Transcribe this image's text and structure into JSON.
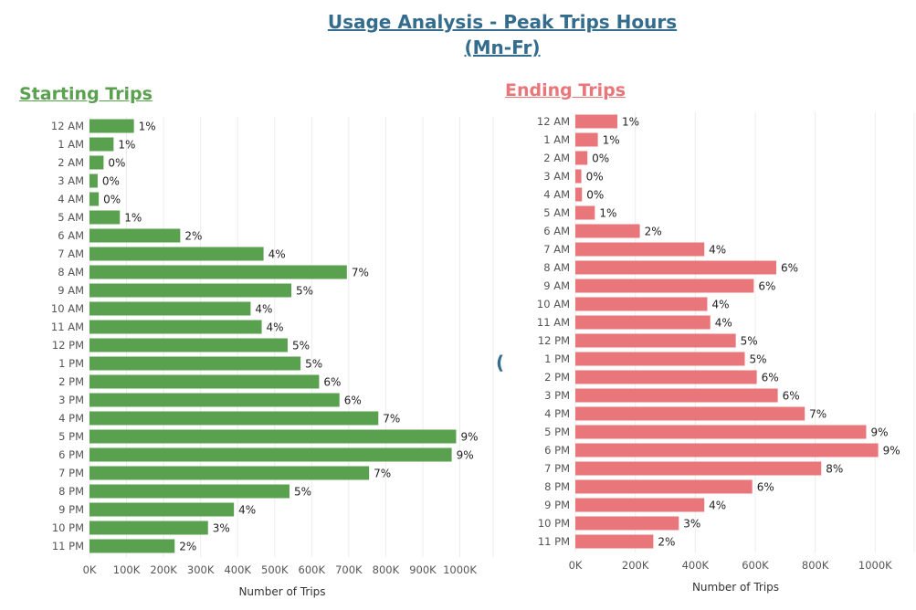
{
  "title_line1": "Usage Analysis - Peak Trips Hours",
  "title_line2": "(Mn-Fr)",
  "stray_mark": "(",
  "chart_data": [
    {
      "type": "bar",
      "orientation": "horizontal",
      "title": "Starting Trips",
      "xlabel": "Number of Trips",
      "color": "#59a14f",
      "xlim": [
        0,
        1090000
      ],
      "x_ticks": [
        0,
        100000,
        200000,
        300000,
        400000,
        500000,
        600000,
        700000,
        800000,
        900000,
        1000000
      ],
      "x_tick_labels": [
        "0K",
        "100K",
        "200K",
        "300K",
        "400K",
        "500K",
        "600K",
        "700K",
        "800K",
        "900K",
        "1000K"
      ],
      "grid": true,
      "categories": [
        "12 AM",
        "1 AM",
        "2 AM",
        "3 AM",
        "4 AM",
        "5 AM",
        "6 AM",
        "7 AM",
        "8 AM",
        "9 AM",
        "10 AM",
        "11 AM",
        "12 PM",
        "1 PM",
        "2 PM",
        "3 PM",
        "4 PM",
        "5 PM",
        "6 PM",
        "7 PM",
        "8 PM",
        "9 PM",
        "10 PM",
        "11 PM"
      ],
      "values": [
        120000,
        65000,
        38000,
        22000,
        25000,
        82000,
        245000,
        470000,
        695000,
        545000,
        435000,
        465000,
        535000,
        570000,
        620000,
        675000,
        780000,
        990000,
        978000,
        755000,
        540000,
        390000,
        320000,
        230000
      ],
      "labels": [
        "1%",
        "1%",
        "0%",
        "0%",
        "0%",
        "1%",
        "2%",
        "4%",
        "7%",
        "5%",
        "4%",
        "4%",
        "5%",
        "5%",
        "6%",
        "6%",
        "7%",
        "9%",
        "9%",
        "7%",
        "5%",
        "4%",
        "3%",
        "2%"
      ]
    },
    {
      "type": "bar",
      "orientation": "horizontal",
      "title": "Ending Trips",
      "xlabel": "Number of Trips",
      "color": "#e8767a",
      "xlim": [
        0,
        1130000
      ],
      "x_ticks": [
        0,
        200000,
        400000,
        600000,
        800000,
        1000000
      ],
      "x_tick_labels": [
        "0K",
        "200K",
        "400K",
        "600K",
        "800K",
        "1000K"
      ],
      "grid": true,
      "categories": [
        "12 AM",
        "1 AM",
        "2 AM",
        "3 AM",
        "4 AM",
        "5 AM",
        "6 AM",
        "7 AM",
        "8 AM",
        "9 AM",
        "10 AM",
        "11 AM",
        "12 PM",
        "1 PM",
        "2 PM",
        "3 PM",
        "4 PM",
        "5 PM",
        "6 PM",
        "7 PM",
        "8 PM",
        "9 PM",
        "10 PM",
        "11 PM"
      ],
      "values": [
        140000,
        75000,
        40000,
        20000,
        22000,
        65000,
        215000,
        430000,
        670000,
        595000,
        440000,
        450000,
        535000,
        565000,
        605000,
        675000,
        765000,
        970000,
        1010000,
        820000,
        590000,
        430000,
        345000,
        260000
      ],
      "labels": [
        "1%",
        "1%",
        "0%",
        "0%",
        "0%",
        "1%",
        "2%",
        "4%",
        "6%",
        "6%",
        "4%",
        "4%",
        "5%",
        "5%",
        "6%",
        "6%",
        "7%",
        "9%",
        "9%",
        "8%",
        "6%",
        "4%",
        "3%",
        "2%"
      ]
    }
  ]
}
